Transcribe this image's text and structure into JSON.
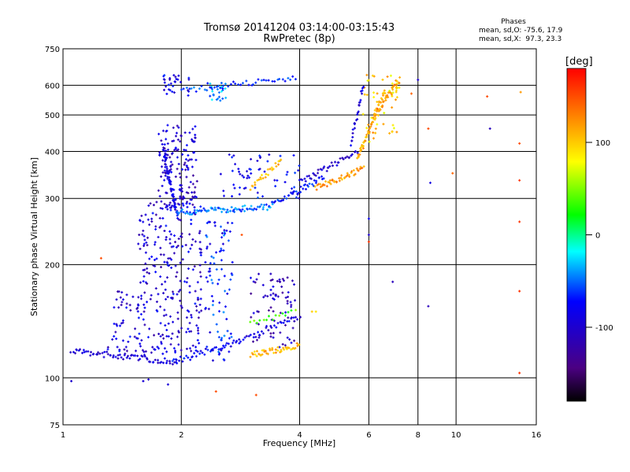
{
  "chart_data": {
    "type": "scatter",
    "title": "Tromsø 20141204 03:14:00-03:15:43",
    "subtitle": "RwPretec (8p)",
    "xlabel": "Frequency [MHz]",
    "ylabel": "Stationary phase Virtual Height [km]",
    "xscale": "log",
    "yscale": "log",
    "xlim": [
      1,
      16
    ],
    "ylim": [
      75,
      750
    ],
    "x_ticks": [
      1,
      2,
      4,
      6,
      8,
      10,
      16
    ],
    "y_ticks": [
      75,
      100,
      200,
      300,
      400,
      500,
      600,
      750
    ],
    "grid": true,
    "phase_box": {
      "title": "Phases",
      "line1": "mean, sd,O: -75.6, 17.9",
      "line2": "mean, sd,X:  97.3, 23.3"
    },
    "colorbar": {
      "label": "[deg]",
      "range": [
        -180,
        180
      ],
      "ticks": [
        100,
        0,
        -100
      ],
      "colormap": "rainbow",
      "colors": [
        "#000000",
        "#4b0082",
        "#0000ff",
        "#00ffff",
        "#00ff00",
        "#ffff00",
        "#ff8000",
        "#ff0000"
      ]
    },
    "traces": [
      {
        "x0": 1.05,
        "x1": 1.95,
        "h0": 118,
        "h1": 110,
        "phase": -95,
        "density": 70
      },
      {
        "x0": 1.9,
        "x1": 2.8,
        "h0": 110,
        "h1": 125,
        "phase": -80,
        "density": 40
      },
      {
        "x0": 2.8,
        "x1": 4.0,
        "h0": 125,
        "h1": 145,
        "phase": -90,
        "density": 30
      },
      {
        "x0": 3.0,
        "x1": 4.0,
        "h0": 115,
        "h1": 122,
        "phase": 110,
        "density": 45
      },
      {
        "x0": 3.0,
        "x1": 3.9,
        "h0": 140,
        "h1": 150,
        "phase": 40,
        "density": 15
      },
      {
        "x0": 1.8,
        "x1": 1.95,
        "h0": 400,
        "h1": 270,
        "phase": -85,
        "density": 60
      },
      {
        "x0": 1.95,
        "x1": 3.4,
        "h0": 275,
        "h1": 285,
        "phase": -50,
        "density": 80
      },
      {
        "x0": 3.4,
        "x1": 4.6,
        "h0": 290,
        "h1": 340,
        "phase": -70,
        "density": 40
      },
      {
        "x0": 4.0,
        "x1": 5.6,
        "h0": 330,
        "h1": 400,
        "phase": -100,
        "density": 40
      },
      {
        "x0": 4.4,
        "x1": 5.8,
        "h0": 320,
        "h1": 360,
        "phase": 120,
        "density": 45
      },
      {
        "x0": 5.6,
        "x1": 6.6,
        "h0": 380,
        "h1": 580,
        "phase": 110,
        "density": 55
      },
      {
        "x0": 5.4,
        "x1": 5.8,
        "h0": 420,
        "h1": 600,
        "phase": -90,
        "density": 25
      },
      {
        "x0": 2.0,
        "x1": 3.9,
        "h0": 580,
        "h1": 630,
        "phase": -60,
        "density": 45
      },
      {
        "x0": 3.0,
        "x1": 3.6,
        "h0": 320,
        "h1": 380,
        "phase": 110,
        "density": 25
      },
      {
        "x0": 6.2,
        "x1": 7.2,
        "h0": 500,
        "h1": 620,
        "phase": 120,
        "density": 30
      }
    ],
    "clouds": [
      {
        "x0": 1.55,
        "x1": 2.25,
        "h0": 115,
        "h1": 300,
        "phase": -95,
        "density": 260
      },
      {
        "x0": 1.75,
        "x1": 2.2,
        "h0": 280,
        "h1": 470,
        "phase": -100,
        "density": 160
      },
      {
        "x0": 2.3,
        "x1": 2.7,
        "h0": 110,
        "h1": 260,
        "phase": -70,
        "density": 90
      },
      {
        "x0": 3.0,
        "x1": 3.9,
        "h0": 120,
        "h1": 190,
        "phase": -110,
        "density": 80
      },
      {
        "x0": 1.3,
        "x1": 1.6,
        "h0": 115,
        "h1": 170,
        "phase": -95,
        "density": 50
      },
      {
        "x0": 2.5,
        "x1": 4.0,
        "h0": 300,
        "h1": 400,
        "phase": -80,
        "density": 60
      },
      {
        "x0": 5.8,
        "x1": 7.2,
        "h0": 420,
        "h1": 640,
        "phase": 100,
        "density": 60
      },
      {
        "x0": 1.8,
        "x1": 2.1,
        "h0": 560,
        "h1": 640,
        "phase": -90,
        "density": 30
      },
      {
        "x0": 2.3,
        "x1": 2.6,
        "h0": 540,
        "h1": 610,
        "phase": -40,
        "density": 25
      }
    ],
    "scatter_points": [
      {
        "x": 1.25,
        "y": 208,
        "phase": 150
      },
      {
        "x": 2.45,
        "y": 92,
        "phase": 150
      },
      {
        "x": 3.1,
        "y": 90,
        "phase": 150
      },
      {
        "x": 1.6,
        "y": 98,
        "phase": -95
      },
      {
        "x": 1.65,
        "y": 99,
        "phase": -100
      },
      {
        "x": 1.85,
        "y": 96,
        "phase": -95
      },
      {
        "x": 8.5,
        "y": 155,
        "phase": -110
      },
      {
        "x": 8.6,
        "y": 330,
        "phase": -90
      },
      {
        "x": 8.5,
        "y": 460,
        "phase": 150
      },
      {
        "x": 9.8,
        "y": 350,
        "phase": 140
      },
      {
        "x": 12.0,
        "y": 560,
        "phase": 150
      },
      {
        "x": 12.2,
        "y": 460,
        "phase": -110
      },
      {
        "x": 14.5,
        "y": 420,
        "phase": 150
      },
      {
        "x": 14.5,
        "y": 335,
        "phase": 160
      },
      {
        "x": 14.5,
        "y": 260,
        "phase": 160
      },
      {
        "x": 14.5,
        "y": 170,
        "phase": 160
      },
      {
        "x": 14.5,
        "y": 103,
        "phase": 160
      },
      {
        "x": 14.6,
        "y": 575,
        "phase": 120
      },
      {
        "x": 8.0,
        "y": 620,
        "phase": -100
      },
      {
        "x": 7.7,
        "y": 570,
        "phase": 140
      },
      {
        "x": 6.0,
        "y": 265,
        "phase": -80
      },
      {
        "x": 6.0,
        "y": 230,
        "phase": 160
      },
      {
        "x": 6.9,
        "y": 180,
        "phase": -110
      },
      {
        "x": 6.0,
        "y": 240,
        "phase": -100
      },
      {
        "x": 4.3,
        "y": 150,
        "phase": 100
      },
      {
        "x": 4.4,
        "y": 150,
        "phase": 90
      },
      {
        "x": 2.85,
        "y": 240,
        "phase": 150
      },
      {
        "x": 1.05,
        "y": 98,
        "phase": -100
      }
    ]
  }
}
